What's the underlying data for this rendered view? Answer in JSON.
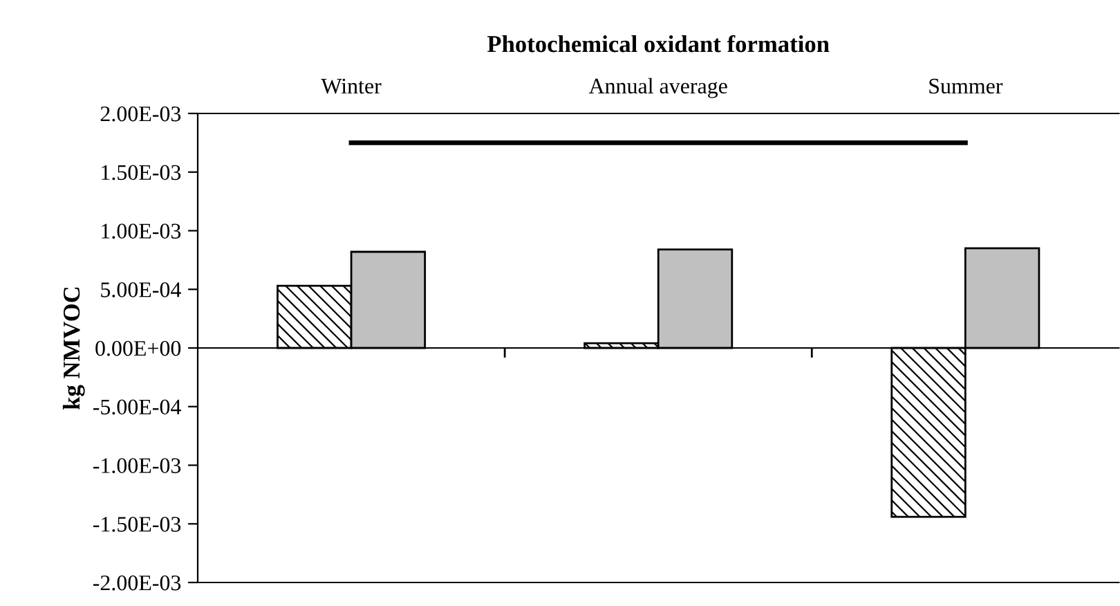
{
  "chart_data": {
    "type": "bar",
    "title": "Photochemical oxidant formation",
    "ylabel": "kg NMVOC",
    "categories": [
      "Winter",
      "Annual average",
      "Summer"
    ],
    "series": [
      {
        "color": "#000000",
        "values": [
          0.00053,
          4e-05,
          -0.00144
        ]
      },
      {
        "color": "#c0c0c0",
        "values": [
          0.00082,
          0.00084,
          0.00085
        ]
      },
      {
        "type": "line",
        "color": "#000000",
        "values": [
          0.00175,
          null,
          0.00175
        ]
      }
    ],
    "ylim": [
      -0.002,
      0.002
    ],
    "yticks": [
      {
        "value": -0.002,
        "label": "-2.00E-03"
      },
      {
        "value": -0.0015,
        "label": "-1.50E-03"
      },
      {
        "value": -0.001,
        "label": "-1.00E-03"
      },
      {
        "value": -0.0005,
        "label": "-5.00E-04"
      },
      {
        "value": 0,
        "label": "0.00E+00"
      },
      {
        "value": 0.0005,
        "label": "5.00E-04"
      },
      {
        "value": 0.001,
        "label": "1.00E-03"
      },
      {
        "value": 0.0015,
        "label": "1.50E-03"
      },
      {
        "value": 0.002,
        "label": "2.00E-03"
      }
    ],
    "grid": false,
    "legend": false
  }
}
